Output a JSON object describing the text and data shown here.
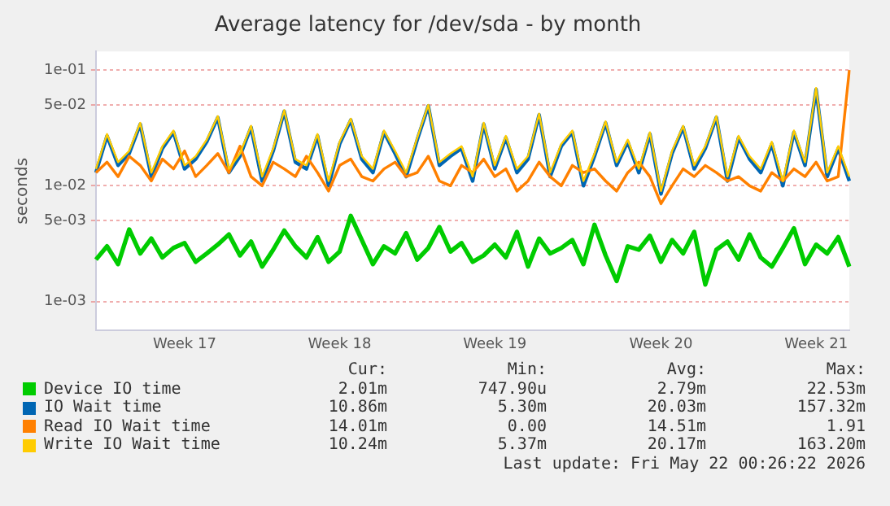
{
  "chart_data": {
    "type": "line",
    "title": "Average latency for /dev/sda - by month",
    "ylabel": "seconds",
    "log": "y",
    "grid": "y",
    "legend": "bottom",
    "marker": "none",
    "line_style": "solid",
    "categories": [
      null,
      null,
      null,
      null,
      null,
      null,
      null,
      null,
      "Week 17",
      null,
      null,
      null,
      null,
      null,
      null,
      null,
      null,
      null,
      null,
      null,
      null,
      null,
      "Week 18",
      null,
      null,
      null,
      null,
      null,
      null,
      null,
      null,
      null,
      null,
      null,
      null,
      null,
      "Week 19",
      null,
      null,
      null,
      null,
      null,
      null,
      null,
      null,
      null,
      null,
      null,
      null,
      null,
      null,
      "Week 20",
      null,
      null,
      null,
      null,
      null,
      null,
      null,
      null,
      null,
      null,
      null,
      null,
      null,
      "Week 21",
      null,
      null,
      null
    ],
    "ylim": [
      0.00056,
      0.145
    ],
    "yticks": [
      {
        "value": 0.001,
        "label": "1e-03"
      },
      {
        "value": 0.005,
        "label": "5e-03"
      },
      {
        "value": 0.01,
        "label": "1e-02"
      },
      {
        "value": 0.05,
        "label": "5e-02"
      },
      {
        "value": 0.1,
        "label": "1e-01"
      }
    ],
    "series": [
      {
        "name": "Device IO time",
        "color": "#00cc00",
        "values": [
          0.0023,
          0.003,
          0.0021,
          0.0042,
          0.0026,
          0.0035,
          0.0024,
          0.0029,
          0.0032,
          0.0022,
          0.0026,
          0.0031,
          0.0038,
          0.0025,
          0.0033,
          0.002,
          0.0028,
          0.0041,
          0.003,
          0.0024,
          0.0036,
          0.0022,
          0.0027,
          0.0055,
          0.0034,
          0.0021,
          0.003,
          0.0026,
          0.0039,
          0.0023,
          0.0029,
          0.0044,
          0.0027,
          0.0032,
          0.0022,
          0.0025,
          0.0031,
          0.0024,
          0.004,
          0.002,
          0.0035,
          0.0026,
          0.0029,
          0.0034,
          0.0021,
          0.0046,
          0.0025,
          0.0015,
          0.003,
          0.0028,
          0.0037,
          0.0022,
          0.0034,
          0.0026,
          0.004,
          0.0014,
          0.0028,
          0.0033,
          0.0023,
          0.0038,
          0.0024,
          0.002,
          0.0029,
          0.0043,
          0.0021,
          0.0031,
          0.0026,
          0.0036,
          0.002
        ]
      },
      {
        "name": "IO Wait time",
        "color": "#0066b3",
        "values": [
          0.013,
          0.027,
          0.015,
          0.019,
          0.034,
          0.012,
          0.021,
          0.029,
          0.014,
          0.017,
          0.024,
          0.039,
          0.013,
          0.018,
          0.032,
          0.011,
          0.02,
          0.044,
          0.016,
          0.014,
          0.027,
          0.01,
          0.023,
          0.037,
          0.017,
          0.013,
          0.029,
          0.019,
          0.012,
          0.025,
          0.049,
          0.015,
          0.018,
          0.021,
          0.011,
          0.034,
          0.014,
          0.026,
          0.013,
          0.017,
          0.041,
          0.012,
          0.022,
          0.029,
          0.01,
          0.018,
          0.035,
          0.015,
          0.024,
          0.013,
          0.028,
          0.0085,
          0.019,
          0.032,
          0.014,
          0.021,
          0.039,
          0.011,
          0.026,
          0.017,
          0.013,
          0.023,
          0.01,
          0.029,
          0.015,
          0.068,
          0.012,
          0.021,
          0.011
        ]
      },
      {
        "name": "Read IO Wait time",
        "color": "#ff8000",
        "values": [
          0.013,
          0.016,
          0.012,
          0.018,
          0.015,
          0.011,
          0.017,
          0.014,
          0.02,
          0.012,
          0.015,
          0.019,
          0.013,
          0.022,
          0.012,
          0.01,
          0.016,
          0.014,
          0.012,
          0.018,
          0.013,
          0.009,
          0.015,
          0.017,
          0.012,
          0.011,
          0.014,
          0.016,
          0.012,
          0.013,
          0.018,
          0.011,
          0.01,
          0.015,
          0.013,
          0.017,
          0.012,
          0.014,
          0.009,
          0.011,
          0.016,
          0.012,
          0.01,
          0.015,
          0.013,
          0.014,
          0.011,
          0.009,
          0.013,
          0.016,
          0.012,
          0.007,
          0.01,
          0.014,
          0.012,
          0.015,
          0.013,
          0.011,
          0.012,
          0.01,
          0.009,
          0.013,
          0.011,
          0.014,
          0.012,
          0.016,
          0.011,
          0.012,
          0.1
        ]
      },
      {
        "name": "Write IO Wait time",
        "color": "#ffcc00",
        "values": [
          0.014,
          0.028,
          0.016,
          0.02,
          0.035,
          0.013,
          0.022,
          0.03,
          0.015,
          0.018,
          0.025,
          0.04,
          0.014,
          0.019,
          0.033,
          0.012,
          0.021,
          0.045,
          0.017,
          0.015,
          0.028,
          0.011,
          0.024,
          0.038,
          0.018,
          0.014,
          0.03,
          0.02,
          0.013,
          0.026,
          0.05,
          0.016,
          0.019,
          0.022,
          0.012,
          0.035,
          0.015,
          0.027,
          0.014,
          0.018,
          0.042,
          0.013,
          0.023,
          0.03,
          0.011,
          0.019,
          0.036,
          0.016,
          0.025,
          0.014,
          0.029,
          0.009,
          0.02,
          0.033,
          0.015,
          0.022,
          0.04,
          0.012,
          0.027,
          0.018,
          0.014,
          0.024,
          0.011,
          0.03,
          0.016,
          0.07,
          0.013,
          0.022,
          0.012
        ]
      }
    ],
    "annotations": [
      "Cur:",
      "Min:",
      "Avg:",
      "Max:",
      "2.01m",
      "747.90u",
      "2.79m",
      "22.53m",
      "10.86m",
      "5.30m",
      "20.03m",
      "157.32m",
      "14.01m",
      "0.00",
      "14.51m",
      "1.91",
      "10.24m",
      "5.37m",
      "20.17m",
      "163.20m",
      "Last update: Fri May 22 00:26:22 2026"
    ]
  }
}
